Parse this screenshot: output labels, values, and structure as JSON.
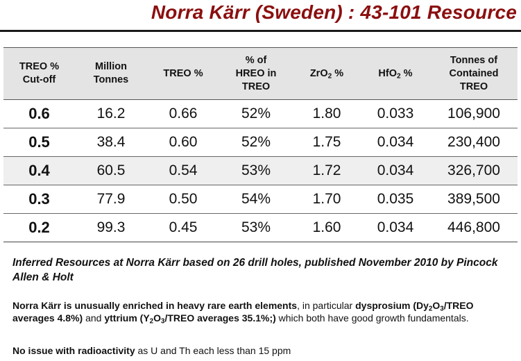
{
  "title": "Norra Kärr (Sweden) : 43-101 Resource",
  "table": {
    "headers": {
      "cutoff": [
        "TREO %",
        "Cut-off"
      ],
      "million_tonnes": [
        "Million",
        "Tonnes"
      ],
      "treo": "TREO %",
      "hreo": [
        "% of",
        "HREO in",
        "TREO"
      ],
      "zro2": {
        "main": "ZrO",
        "sub": "2",
        "rest": " %"
      },
      "hfo2": {
        "main": "HfO",
        "sub": "2",
        "rest": " %"
      },
      "contained": [
        "Tonnes of",
        "Contained",
        "TREO"
      ]
    },
    "rows": [
      {
        "cutoff": "0.6",
        "tonnes": "16.2",
        "treo": "0.66",
        "hreo": "52%",
        "zro2": "1.80",
        "hfo2": "0.033",
        "contained": "106,900"
      },
      {
        "cutoff": "0.5",
        "tonnes": "38.4",
        "treo": "0.60",
        "hreo": "52%",
        "zro2": "1.75",
        "hfo2": "0.034",
        "contained": "230,400"
      },
      {
        "cutoff": "0.4",
        "tonnes": "60.5",
        "treo": "0.54",
        "hreo": "53%",
        "zro2": "1.72",
        "hfo2": "0.034",
        "contained": "326,700"
      },
      {
        "cutoff": "0.3",
        "tonnes": "77.9",
        "treo": "0.50",
        "hreo": "54%",
        "zro2": "1.70",
        "hfo2": "0.035",
        "contained": "389,500"
      },
      {
        "cutoff": "0.2",
        "tonnes": "99.3",
        "treo": "0.45",
        "hreo": "53%",
        "zro2": "1.60",
        "hfo2": "0.034",
        "contained": "446,800"
      }
    ]
  },
  "caption": "Inferred Resources at Norra Kärr based on 26 drill holes, published November 2010 by Pincock Allen & Holt",
  "para1": {
    "bold1": "Norra Kärr is unusually enriched in heavy rare earth elements",
    "t1": ", in particular ",
    "bold2": "dysprosium",
    "t2": " (Dy",
    "s1": "2",
    "t3": "O",
    "s2": "3",
    "t4": "/TREO averages 4.8%)",
    "t5": " and ",
    "bold3": "yttrium",
    "t6": " (Y",
    "s3": "2",
    "t7": "O",
    "s4": "3",
    "t8": "/TREO averages 35.1%;)",
    "t9": " which both have good growth fundamentals."
  },
  "para2": {
    "bold": "No issue with radioactivity",
    "text": " as U and Th each less than 15 ppm"
  }
}
